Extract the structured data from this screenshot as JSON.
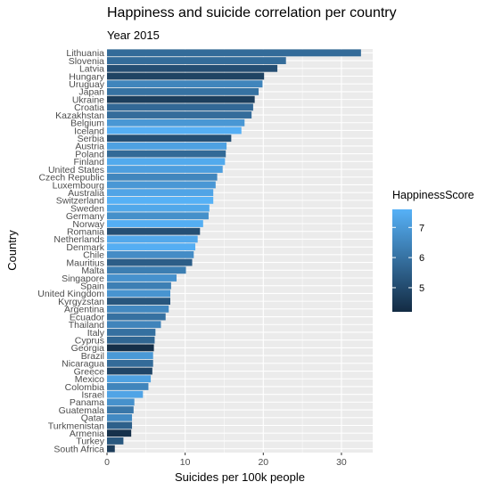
{
  "title": "Happiness and suicide correlation per country",
  "subtitle": "Year 2015",
  "chart_data": {
    "type": "bar",
    "orientation": "horizontal",
    "xlabel": "Suicides per 100k people",
    "ylabel": "Country",
    "xlim": [
      0,
      34
    ],
    "xticks": [
      0,
      10,
      20,
      30
    ],
    "legend": {
      "title": "HappinessScore",
      "position": "right",
      "type": "color-gradient",
      "range": [
        4.2,
        7.6
      ],
      "ticks": [
        5,
        6,
        7
      ],
      "color_low": "#132b43",
      "color_high": "#56b1f7"
    },
    "grid": true,
    "categories": [
      "Lithuania",
      "Slovenia",
      "Latvia",
      "Hungary",
      "Uruguay",
      "Japan",
      "Ukraine",
      "Croatia",
      "Kazakhstan",
      "Belgium",
      "Iceland",
      "Serbia",
      "Austria",
      "Poland",
      "Finland",
      "United States",
      "Czech Republic",
      "Luxembourg",
      "Australia",
      "Switzerland",
      "Sweden",
      "Germany",
      "Norway",
      "Romania",
      "Netherlands",
      "Denmark",
      "Chile",
      "Mauritius",
      "Malta",
      "Singapore",
      "Spain",
      "United Kingdom",
      "Kyrgyzstan",
      "Argentina",
      "Ecuador",
      "Thailand",
      "Italy",
      "Cyprus",
      "Georgia",
      "Brazil",
      "Nicaragua",
      "Greece",
      "Mexico",
      "Colombia",
      "Israel",
      "Panama",
      "Guatemala",
      "Qatar",
      "Turkmenistan",
      "Armenia",
      "Turkey",
      "South Africa"
    ],
    "values": [
      32.5,
      22.9,
      21.8,
      20.1,
      19.9,
      19.4,
      18.9,
      18.7,
      18.5,
      17.6,
      17.2,
      15.9,
      15.3,
      15.2,
      15.1,
      14.8,
      14.1,
      13.9,
      13.6,
      13.6,
      13.1,
      13.0,
      12.3,
      11.9,
      11.6,
      11.3,
      11.1,
      10.9,
      10.1,
      8.9,
      8.2,
      8.1,
      8.1,
      7.9,
      7.5,
      6.9,
      6.2,
      6.1,
      6.0,
      5.9,
      5.9,
      5.8,
      5.6,
      5.3,
      4.6,
      3.5,
      3.4,
      3.2,
      3.2,
      3.1,
      2.1,
      1.0
    ],
    "happiness": [
      5.83,
      5.85,
      5.1,
      4.8,
      6.48,
      5.99,
      4.68,
      5.76,
      5.86,
      6.94,
      7.56,
      5.12,
      7.2,
      5.79,
      7.41,
      7.12,
      6.51,
      6.95,
      7.28,
      7.59,
      7.36,
      6.75,
      7.52,
      5.12,
      7.38,
      7.53,
      6.67,
      5.48,
      6.3,
      6.8,
      6.33,
      6.87,
      5.29,
      6.57,
      5.98,
      6.46,
      5.95,
      5.69,
      4.3,
      6.98,
      5.83,
      4.86,
      7.19,
      6.48,
      7.28,
      6.79,
      6.12,
      6.61,
      5.55,
      4.35,
      5.33,
      4.64
    ]
  }
}
